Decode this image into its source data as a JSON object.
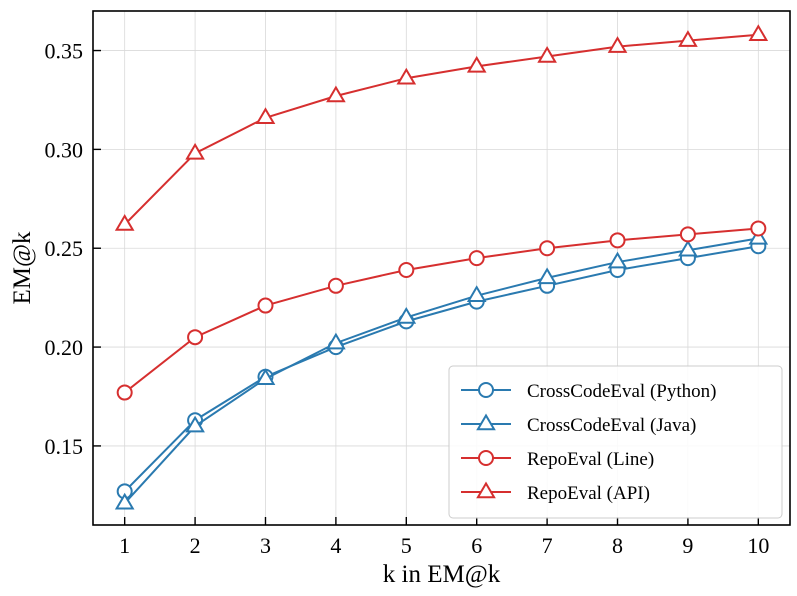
{
  "chart_data": {
    "type": "line",
    "title": "",
    "xlabel": "k in EM@k",
    "ylabel": "EM@k",
    "x": [
      1,
      2,
      3,
      4,
      5,
      6,
      7,
      8,
      9,
      10
    ],
    "xlim": [
      0.55,
      10.45
    ],
    "ylim": [
      0.11,
      0.37
    ],
    "xticks": [
      "1",
      "2",
      "3",
      "4",
      "5",
      "6",
      "7",
      "8",
      "9",
      "10"
    ],
    "yticks": [
      "0.15",
      "0.20",
      "0.25",
      "0.30",
      "0.35"
    ],
    "grid": true,
    "legend_position": "bottom-right",
    "series": [
      {
        "name": "CrossCodeEval (Python)",
        "color": "#2a7ab0",
        "marker": "circle",
        "values": [
          0.127,
          0.163,
          0.185,
          0.2,
          0.213,
          0.223,
          0.231,
          0.239,
          0.245,
          0.251
        ]
      },
      {
        "name": "CrossCodeEval (Java)",
        "color": "#2a7ab0",
        "marker": "triangle",
        "values": [
          0.121,
          0.16,
          0.184,
          0.202,
          0.215,
          0.226,
          0.235,
          0.243,
          0.249,
          0.255
        ]
      },
      {
        "name": "RepoEval (Line)",
        "color": "#d62f2f",
        "marker": "circle",
        "values": [
          0.177,
          0.205,
          0.221,
          0.231,
          0.239,
          0.245,
          0.25,
          0.254,
          0.257,
          0.26
        ]
      },
      {
        "name": "RepoEval (API)",
        "color": "#d62f2f",
        "marker": "triangle",
        "values": [
          0.262,
          0.298,
          0.316,
          0.327,
          0.336,
          0.342,
          0.347,
          0.352,
          0.355,
          0.358
        ]
      }
    ]
  }
}
